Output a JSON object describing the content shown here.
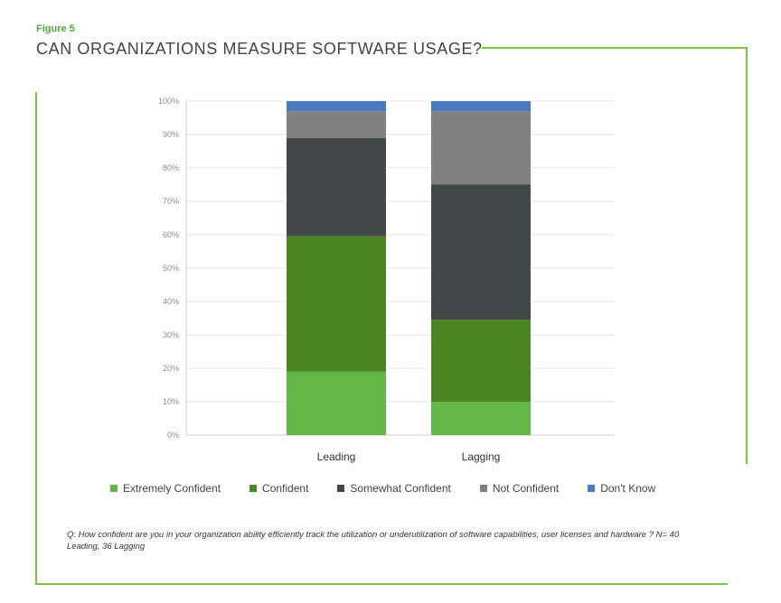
{
  "figure_label": "Figure 5",
  "title": "CAN ORGANIZATIONS MEASURE SOFTWARE USAGE?",
  "footnote": "Q: How confident are you in your organization ability efficiently track the utilization or underutilization of software capabilities, user licenses and hardware ? N= 40 Leading, 36 Lagging",
  "chart_data": {
    "type": "bar",
    "stacked": true,
    "categories": [
      "Leading",
      "Lagging"
    ],
    "y_ticks": [
      "0%",
      "10%",
      "20%",
      "30%",
      "40%",
      "50%",
      "60%",
      "70%",
      "80%",
      "90%",
      "100%"
    ],
    "ylim": [
      0,
      100
    ],
    "series": [
      {
        "name": "Extremely Confident",
        "color": "#62b646",
        "values": [
          19,
          10
        ]
      },
      {
        "name": "Confident",
        "color": "#4b8522",
        "values": [
          40.5,
          24.5
        ]
      },
      {
        "name": "Somewhat Confident",
        "color": "#424848",
        "values": [
          29.5,
          40.5
        ]
      },
      {
        "name": "Not Confident",
        "color": "#808080",
        "values": [
          8,
          22
        ]
      },
      {
        "name": "Don't Know",
        "color": "#4b7bbf",
        "values": [
          3,
          3
        ]
      }
    ],
    "legend_position": "bottom"
  }
}
